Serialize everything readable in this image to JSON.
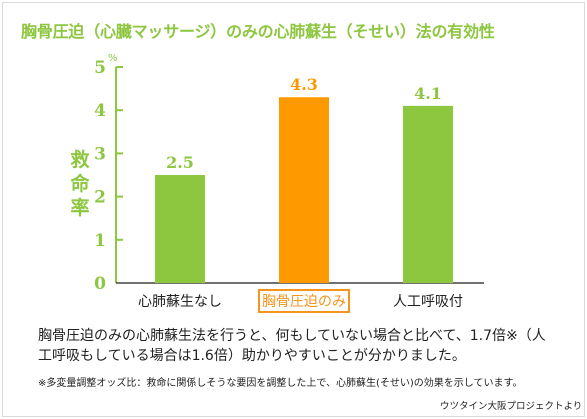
{
  "title": "胸骨圧迫（心臓マッサージ）のみの心肺蘇生（そせい）法の有効性",
  "chart_data": {
    "type": "bar",
    "categories": [
      "心肺蘇生なし",
      "胸骨圧迫のみ",
      "人工呼吸付"
    ],
    "values": [
      2.5,
      4.3,
      4.1
    ],
    "value_labels": [
      "2.5",
      "4.3",
      "4.1"
    ],
    "highlight_category": "胸骨圧迫のみ",
    "ylabel": "救命率",
    "y_unit": "%",
    "ylim": [
      0,
      5
    ],
    "yticks": [
      "0",
      "1",
      "2",
      "3",
      "4",
      "5"
    ],
    "grid": false,
    "colors": {
      "default": "#8dc63f",
      "highlight": "#ff9900",
      "axis": "#8dc63f"
    }
  },
  "description": "胸骨圧迫のみの心肺蘇生法を行うと、何もしていない場合と比べて、1.7倍※（人工呼吸もしている場合は1.6倍）助かりやすいことが分かりました。",
  "footnote": "※多変量調整オッズ比：救命に関係しそうな要因を調整した上で、心肺蘇生(そせい)の効果を示しています。",
  "source": "ウツタイン大阪プロジェクトより"
}
